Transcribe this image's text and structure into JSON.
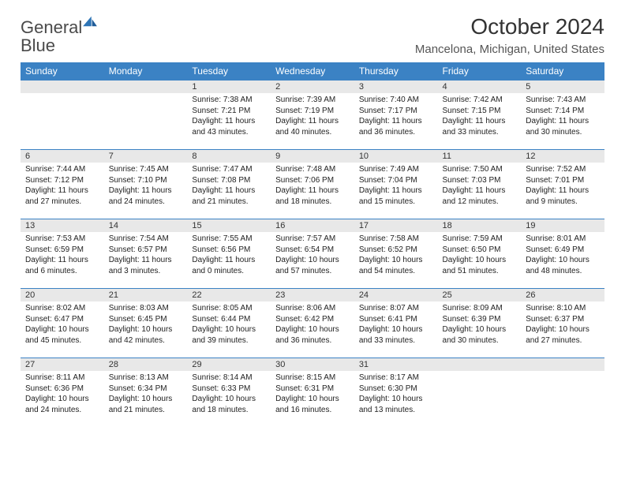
{
  "logo": {
    "word1": "General",
    "word2": "Blue"
  },
  "title": "October 2024",
  "location": "Mancelona, Michigan, United States",
  "colors": {
    "header_bg": "#3b82c4",
    "header_text": "#ffffff",
    "daynum_bg": "#e8e8e8",
    "rule": "#3b82c4",
    "body_text": "#222222",
    "logo_gray": "#4a4a4a",
    "logo_blue": "#2e75b6"
  },
  "day_headers": [
    "Sunday",
    "Monday",
    "Tuesday",
    "Wednesday",
    "Thursday",
    "Friday",
    "Saturday"
  ],
  "weeks": [
    [
      null,
      null,
      {
        "n": "1",
        "sr": "7:38 AM",
        "ss": "7:21 PM",
        "dl": "11 hours and 43 minutes."
      },
      {
        "n": "2",
        "sr": "7:39 AM",
        "ss": "7:19 PM",
        "dl": "11 hours and 40 minutes."
      },
      {
        "n": "3",
        "sr": "7:40 AM",
        "ss": "7:17 PM",
        "dl": "11 hours and 36 minutes."
      },
      {
        "n": "4",
        "sr": "7:42 AM",
        "ss": "7:15 PM",
        "dl": "11 hours and 33 minutes."
      },
      {
        "n": "5",
        "sr": "7:43 AM",
        "ss": "7:14 PM",
        "dl": "11 hours and 30 minutes."
      }
    ],
    [
      {
        "n": "6",
        "sr": "7:44 AM",
        "ss": "7:12 PM",
        "dl": "11 hours and 27 minutes."
      },
      {
        "n": "7",
        "sr": "7:45 AM",
        "ss": "7:10 PM",
        "dl": "11 hours and 24 minutes."
      },
      {
        "n": "8",
        "sr": "7:47 AM",
        "ss": "7:08 PM",
        "dl": "11 hours and 21 minutes."
      },
      {
        "n": "9",
        "sr": "7:48 AM",
        "ss": "7:06 PM",
        "dl": "11 hours and 18 minutes."
      },
      {
        "n": "10",
        "sr": "7:49 AM",
        "ss": "7:04 PM",
        "dl": "11 hours and 15 minutes."
      },
      {
        "n": "11",
        "sr": "7:50 AM",
        "ss": "7:03 PM",
        "dl": "11 hours and 12 minutes."
      },
      {
        "n": "12",
        "sr": "7:52 AM",
        "ss": "7:01 PM",
        "dl": "11 hours and 9 minutes."
      }
    ],
    [
      {
        "n": "13",
        "sr": "7:53 AM",
        "ss": "6:59 PM",
        "dl": "11 hours and 6 minutes."
      },
      {
        "n": "14",
        "sr": "7:54 AM",
        "ss": "6:57 PM",
        "dl": "11 hours and 3 minutes."
      },
      {
        "n": "15",
        "sr": "7:55 AM",
        "ss": "6:56 PM",
        "dl": "11 hours and 0 minutes."
      },
      {
        "n": "16",
        "sr": "7:57 AM",
        "ss": "6:54 PM",
        "dl": "10 hours and 57 minutes."
      },
      {
        "n": "17",
        "sr": "7:58 AM",
        "ss": "6:52 PM",
        "dl": "10 hours and 54 minutes."
      },
      {
        "n": "18",
        "sr": "7:59 AM",
        "ss": "6:50 PM",
        "dl": "10 hours and 51 minutes."
      },
      {
        "n": "19",
        "sr": "8:01 AM",
        "ss": "6:49 PM",
        "dl": "10 hours and 48 minutes."
      }
    ],
    [
      {
        "n": "20",
        "sr": "8:02 AM",
        "ss": "6:47 PM",
        "dl": "10 hours and 45 minutes."
      },
      {
        "n": "21",
        "sr": "8:03 AM",
        "ss": "6:45 PM",
        "dl": "10 hours and 42 minutes."
      },
      {
        "n": "22",
        "sr": "8:05 AM",
        "ss": "6:44 PM",
        "dl": "10 hours and 39 minutes."
      },
      {
        "n": "23",
        "sr": "8:06 AM",
        "ss": "6:42 PM",
        "dl": "10 hours and 36 minutes."
      },
      {
        "n": "24",
        "sr": "8:07 AM",
        "ss": "6:41 PM",
        "dl": "10 hours and 33 minutes."
      },
      {
        "n": "25",
        "sr": "8:09 AM",
        "ss": "6:39 PM",
        "dl": "10 hours and 30 minutes."
      },
      {
        "n": "26",
        "sr": "8:10 AM",
        "ss": "6:37 PM",
        "dl": "10 hours and 27 minutes."
      }
    ],
    [
      {
        "n": "27",
        "sr": "8:11 AM",
        "ss": "6:36 PM",
        "dl": "10 hours and 24 minutes."
      },
      {
        "n": "28",
        "sr": "8:13 AM",
        "ss": "6:34 PM",
        "dl": "10 hours and 21 minutes."
      },
      {
        "n": "29",
        "sr": "8:14 AM",
        "ss": "6:33 PM",
        "dl": "10 hours and 18 minutes."
      },
      {
        "n": "30",
        "sr": "8:15 AM",
        "ss": "6:31 PM",
        "dl": "10 hours and 16 minutes."
      },
      {
        "n": "31",
        "sr": "8:17 AM",
        "ss": "6:30 PM",
        "dl": "10 hours and 13 minutes."
      },
      null,
      null
    ]
  ],
  "labels": {
    "sunrise": "Sunrise:",
    "sunset": "Sunset:",
    "daylight": "Daylight:"
  }
}
